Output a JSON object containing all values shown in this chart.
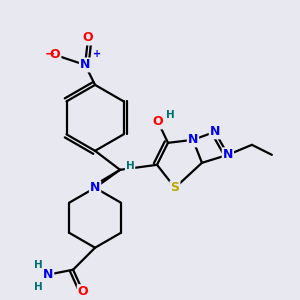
{
  "bg_color": "#e8e8f0",
  "atom_colors": {
    "N": "#0000ee",
    "O": "#ff0000",
    "S": "#bbaa00",
    "C": "#000000",
    "H": "#007070"
  },
  "bond_color": "#000000",
  "line_width": 1.6
}
